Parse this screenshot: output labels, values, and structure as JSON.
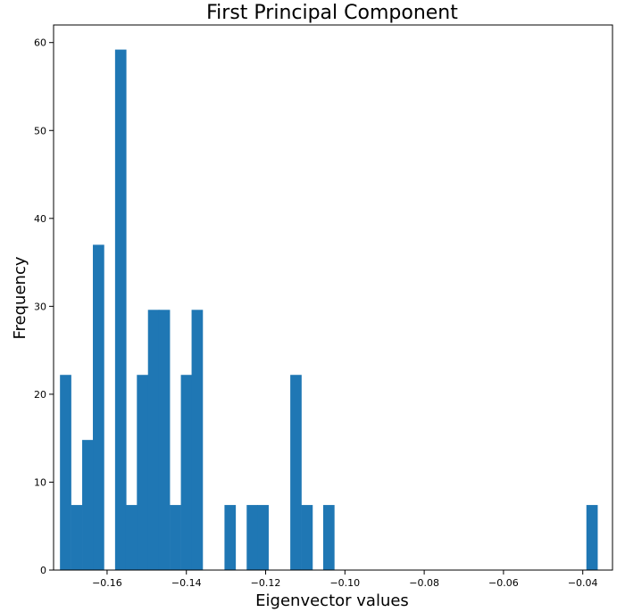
{
  "chart_data": {
    "type": "bar",
    "title": "First Principal Component",
    "xlabel": "Eigenvector values",
    "ylabel": "Frequency",
    "xlim": [
      -0.1735,
      -0.0325
    ],
    "ylim": [
      0,
      62
    ],
    "bar_color": "#1f77b4",
    "grid": false,
    "legend": "none",
    "bin_width": 0.00277,
    "bins": [
      {
        "x": -0.1705,
        "value": 22.2
      },
      {
        "x": -0.1677,
        "value": 7.4
      },
      {
        "x": -0.1649,
        "value": 14.8
      },
      {
        "x": -0.1622,
        "value": 37.0
      },
      {
        "x": -0.1594,
        "value": 0
      },
      {
        "x": -0.1566,
        "value": 59.2
      },
      {
        "x": -0.1539,
        "value": 7.4
      },
      {
        "x": -0.1511,
        "value": 22.2
      },
      {
        "x": -0.1483,
        "value": 29.6
      },
      {
        "x": -0.1456,
        "value": 29.6
      },
      {
        "x": -0.1428,
        "value": 7.4
      },
      {
        "x": -0.14,
        "value": 22.2
      },
      {
        "x": -0.1373,
        "value": 29.6
      },
      {
        "x": -0.1345,
        "value": 0
      },
      {
        "x": -0.1317,
        "value": 0
      },
      {
        "x": -0.129,
        "value": 7.4
      },
      {
        "x": -0.1262,
        "value": 0
      },
      {
        "x": -0.1234,
        "value": 7.4
      },
      {
        "x": -0.1207,
        "value": 7.4
      },
      {
        "x": -0.1179,
        "value": 0
      },
      {
        "x": -0.1151,
        "value": 0
      },
      {
        "x": -0.1124,
        "value": 22.2
      },
      {
        "x": -0.1096,
        "value": 7.4
      },
      {
        "x": -0.1068,
        "value": 0
      },
      {
        "x": -0.1041,
        "value": 7.4
      },
      {
        "x": -0.0377,
        "value": 7.4
      }
    ],
    "x_ticks": [
      {
        "value": -0.16,
        "label": "−0.16"
      },
      {
        "value": -0.14,
        "label": "−0.14"
      },
      {
        "value": -0.12,
        "label": "−0.12"
      },
      {
        "value": -0.1,
        "label": "−0.10"
      },
      {
        "value": -0.08,
        "label": "−0.08"
      },
      {
        "value": -0.06,
        "label": "−0.06"
      },
      {
        "value": -0.04,
        "label": "−0.04"
      }
    ],
    "y_ticks": [
      {
        "value": 0,
        "label": "0"
      },
      {
        "value": 10,
        "label": "10"
      },
      {
        "value": 20,
        "label": "20"
      },
      {
        "value": 30,
        "label": "30"
      },
      {
        "value": 40,
        "label": "40"
      },
      {
        "value": 50,
        "label": "50"
      },
      {
        "value": 60,
        "label": "60"
      }
    ]
  }
}
